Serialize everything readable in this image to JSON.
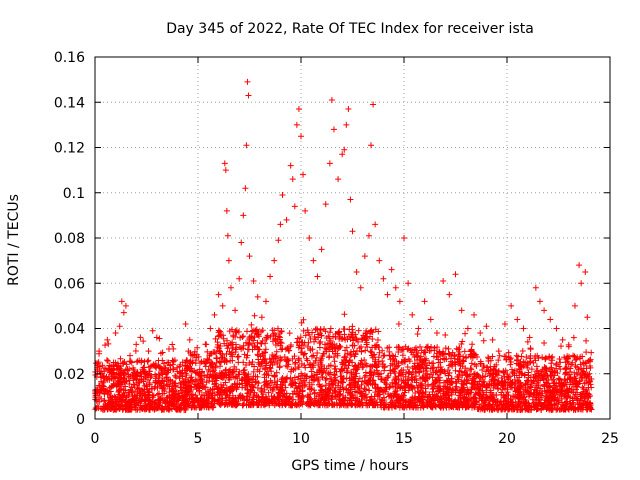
{
  "chart_data": {
    "type": "scatter",
    "title": "Day 345 of 2022, Rate Of TEC Index for receiver ista",
    "xlabel": "GPS time / hours",
    "ylabel": "ROTI / TECUs",
    "xlim": [
      0,
      25
    ],
    "ylim": [
      0,
      0.16
    ],
    "xticks": [
      0,
      5,
      10,
      15,
      20,
      25
    ],
    "xtick_labels": [
      "0",
      "5",
      "10",
      "15",
      "20",
      "25"
    ],
    "yticks": [
      0,
      0.02,
      0.04,
      0.06,
      0.08,
      0.1,
      0.12,
      0.14,
      0.16
    ],
    "ytick_labels": [
      "0",
      "0.02",
      "0.04",
      "0.06",
      "0.08",
      "0.1",
      "0.12",
      "0.14",
      "0.16"
    ],
    "grid": true,
    "marker": "+",
    "color": "#ff0000",
    "series": [
      {
        "name": "ROTI",
        "points": [
          [
            0.1,
            0.012
          ],
          [
            0.2,
            0.03
          ],
          [
            0.3,
            0.021
          ],
          [
            0.4,
            0.016
          ],
          [
            0.6,
            0.035
          ],
          [
            0.7,
            0.022
          ],
          [
            0.9,
            0.025
          ],
          [
            1.0,
            0.038
          ],
          [
            1.2,
            0.041
          ],
          [
            1.3,
            0.052
          ],
          [
            1.4,
            0.047
          ],
          [
            1.5,
            0.05
          ],
          [
            1.7,
            0.028
          ],
          [
            2.0,
            0.033
          ],
          [
            2.3,
            0.022
          ],
          [
            2.6,
            0.03
          ],
          [
            2.8,
            0.039
          ],
          [
            3.0,
            0.036
          ],
          [
            3.2,
            0.029
          ],
          [
            3.5,
            0.025
          ],
          [
            3.8,
            0.031
          ],
          [
            4.1,
            0.018
          ],
          [
            4.4,
            0.042
          ],
          [
            4.6,
            0.035
          ],
          [
            4.9,
            0.026
          ],
          [
            5.2,
            0.021
          ],
          [
            5.4,
            0.033
          ],
          [
            5.6,
            0.04
          ],
          [
            5.8,
            0.046
          ],
          [
            6.0,
            0.055
          ],
          [
            6.2,
            0.05
          ],
          [
            6.3,
            0.113
          ],
          [
            6.35,
            0.11
          ],
          [
            6.4,
            0.092
          ],
          [
            6.45,
            0.081
          ],
          [
            6.5,
            0.07
          ],
          [
            6.6,
            0.058
          ],
          [
            6.8,
            0.048
          ],
          [
            7.0,
            0.062
          ],
          [
            7.1,
            0.078
          ],
          [
            7.2,
            0.09
          ],
          [
            7.3,
            0.102
          ],
          [
            7.35,
            0.121
          ],
          [
            7.4,
            0.149
          ],
          [
            7.45,
            0.143
          ],
          [
            7.5,
            0.072
          ],
          [
            7.7,
            0.061
          ],
          [
            7.9,
            0.054
          ],
          [
            8.1,
            0.045
          ],
          [
            8.3,
            0.052
          ],
          [
            8.5,
            0.063
          ],
          [
            8.7,
            0.07
          ],
          [
            8.9,
            0.079
          ],
          [
            9.0,
            0.086
          ],
          [
            9.1,
            0.099
          ],
          [
            9.3,
            0.088
          ],
          [
            9.5,
            0.112
          ],
          [
            9.6,
            0.106
          ],
          [
            9.7,
            0.094
          ],
          [
            9.8,
            0.13
          ],
          [
            9.9,
            0.137
          ],
          [
            10.0,
            0.125
          ],
          [
            10.1,
            0.108
          ],
          [
            10.2,
            0.092
          ],
          [
            10.4,
            0.08
          ],
          [
            10.6,
            0.07
          ],
          [
            10.8,
            0.063
          ],
          [
            11.0,
            0.075
          ],
          [
            11.2,
            0.095
          ],
          [
            11.4,
            0.113
          ],
          [
            11.5,
            0.141
          ],
          [
            11.6,
            0.128
          ],
          [
            11.8,
            0.106
          ],
          [
            12.0,
            0.117
          ],
          [
            12.1,
            0.119
          ],
          [
            12.2,
            0.13
          ],
          [
            12.3,
            0.137
          ],
          [
            12.4,
            0.097
          ],
          [
            12.5,
            0.083
          ],
          [
            12.7,
            0.065
          ],
          [
            12.9,
            0.058
          ],
          [
            13.1,
            0.072
          ],
          [
            13.3,
            0.081
          ],
          [
            13.4,
            0.121
          ],
          [
            13.5,
            0.139
          ],
          [
            13.6,
            0.086
          ],
          [
            13.8,
            0.07
          ],
          [
            14.0,
            0.062
          ],
          [
            14.2,
            0.055
          ],
          [
            14.4,
            0.066
          ],
          [
            14.6,
            0.058
          ],
          [
            14.8,
            0.052
          ],
          [
            15.0,
            0.08
          ],
          [
            15.2,
            0.06
          ],
          [
            15.4,
            0.046
          ],
          [
            15.7,
            0.04
          ],
          [
            16.0,
            0.052
          ],
          [
            16.3,
            0.044
          ],
          [
            16.6,
            0.038
          ],
          [
            16.9,
            0.061
          ],
          [
            17.2,
            0.055
          ],
          [
            17.5,
            0.064
          ],
          [
            17.8,
            0.048
          ],
          [
            18.1,
            0.04
          ],
          [
            18.4,
            0.046
          ],
          [
            18.7,
            0.038
          ],
          [
            19.0,
            0.041
          ],
          [
            19.3,
            0.035
          ],
          [
            19.6,
            0.03
          ],
          [
            19.9,
            0.042
          ],
          [
            20.2,
            0.05
          ],
          [
            20.5,
            0.044
          ],
          [
            20.8,
            0.04
          ],
          [
            21.1,
            0.036
          ],
          [
            21.4,
            0.058
          ],
          [
            21.6,
            0.052
          ],
          [
            21.8,
            0.048
          ],
          [
            22.1,
            0.044
          ],
          [
            22.4,
            0.04
          ],
          [
            22.7,
            0.035
          ],
          [
            23.0,
            0.032
          ],
          [
            23.3,
            0.05
          ],
          [
            23.5,
            0.068
          ],
          [
            23.6,
            0.06
          ],
          [
            23.8,
            0.065
          ],
          [
            23.9,
            0.045
          ],
          [
            24.0,
            0.02
          ]
        ]
      }
    ],
    "density_bands": [
      {
        "x": [
          0,
          4.5
        ],
        "ymin": 0.004,
        "ymax": 0.026
      },
      {
        "x": [
          4.5,
          5.8
        ],
        "ymin": 0.005,
        "ymax": 0.03
      },
      {
        "x": [
          5.8,
          13.8
        ],
        "ymin": 0.006,
        "ymax": 0.04
      },
      {
        "x": [
          13.8,
          18.5
        ],
        "ymin": 0.005,
        "ymax": 0.032
      },
      {
        "x": [
          18.5,
          24.1
        ],
        "ymin": 0.004,
        "ymax": 0.028
      }
    ]
  }
}
